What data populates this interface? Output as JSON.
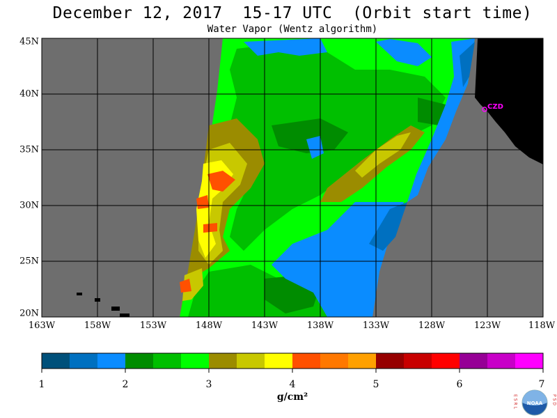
{
  "header": {
    "title": "December 12, 2017  15-17 UTC  (Orbit start time)",
    "subtitle": "Water Vapor (Wentz algorithm)"
  },
  "map": {
    "lat_labels": [
      "45N",
      "40N",
      "35N",
      "30N",
      "25N",
      "20N"
    ],
    "lon_labels": [
      "163W",
      "158W",
      "153W",
      "148W",
      "143W",
      "138W",
      "133W",
      "128W",
      "123W",
      "118W"
    ],
    "station_label": "CZD",
    "colors": {
      "no_data": "#6e6e6e",
      "land": "#000000",
      "grid": "#000000",
      "station": "#ff00ff"
    }
  },
  "colorbar": {
    "ticks": [
      "1",
      "2",
      "3",
      "4",
      "5",
      "6",
      "7"
    ],
    "units": "g/cm²",
    "colors": [
      "#00507a",
      "#0070c0",
      "#0a8cff",
      "#008c00",
      "#00bf00",
      "#00ff00",
      "#9b8c00",
      "#c8c800",
      "#ffff00",
      "#ff5000",
      "#ff7800",
      "#ffa000",
      "#960000",
      "#c80000",
      "#ff0000",
      "#960096",
      "#c800c8",
      "#ff00ff"
    ]
  },
  "logo": {
    "left_letters": "E S R L",
    "right_letters": "P S D",
    "text": "NOAA"
  }
}
